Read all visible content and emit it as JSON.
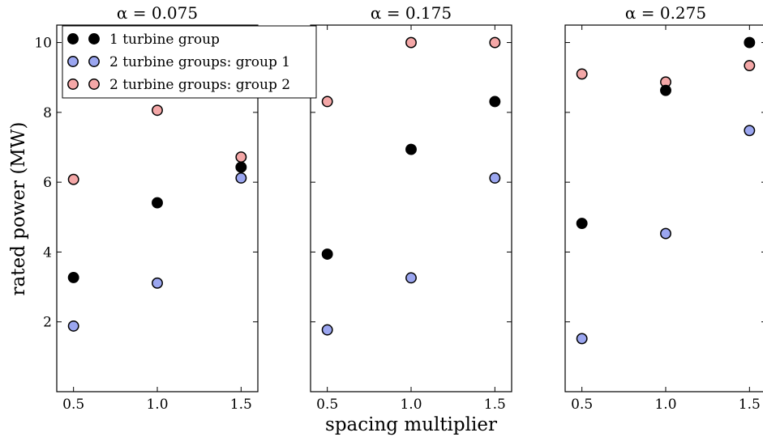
{
  "chart_data": {
    "type": "scatter",
    "ylabel": "rated power (MW)",
    "xlabel": "spacing multiplier",
    "ylim": [
      0,
      10.5
    ],
    "yticks": [
      2,
      4,
      6,
      8,
      10
    ],
    "ytick_labels": [
      "2",
      "4",
      "6",
      "8",
      "10"
    ],
    "xlim": [
      0.4,
      1.6
    ],
    "xticks": [
      0.5,
      1.0,
      1.5
    ],
    "xtick_labels": [
      "0.5",
      "1.0",
      "1.5"
    ],
    "grid": false,
    "legend_position": "top-left of first panel",
    "series_styles": [
      {
        "name": "1 turbine group",
        "color": "#000000"
      },
      {
        "name": "2 turbine groups: group 1",
        "color": "#9ba6f0"
      },
      {
        "name": "2 turbine groups: group 2",
        "color": "#f4a7a7"
      }
    ],
    "panels": [
      {
        "title": "α = 0.075",
        "x": [
          0.5,
          1.0,
          1.5
        ],
        "series": [
          {
            "name": "1 turbine group",
            "values": [
              3.27,
              5.41,
              6.43
            ]
          },
          {
            "name": "2 turbine groups: group 1",
            "values": [
              1.88,
              3.11,
              6.12
            ]
          },
          {
            "name": "2 turbine groups: group 2",
            "values": [
              6.08,
              8.06,
              6.72
            ]
          }
        ]
      },
      {
        "title": "α = 0.175",
        "x": [
          0.5,
          1.0,
          1.5
        ],
        "series": [
          {
            "name": "1 turbine group",
            "values": [
              3.94,
              6.94,
              8.31
            ]
          },
          {
            "name": "2 turbine groups: group 1",
            "values": [
              1.77,
              3.26,
              6.12
            ]
          },
          {
            "name": "2 turbine groups: group 2",
            "values": [
              8.31,
              10.0,
              10.0
            ]
          }
        ]
      },
      {
        "title": "α = 0.275",
        "x": [
          0.5,
          1.0,
          1.5
        ],
        "series": [
          {
            "name": "1 turbine group",
            "values": [
              4.82,
              8.63,
              10.0
            ]
          },
          {
            "name": "2 turbine groups: group 1",
            "values": [
              1.52,
              4.53,
              7.48
            ]
          },
          {
            "name": "2 turbine groups: group 2",
            "values": [
              9.1,
              8.87,
              9.34
            ]
          }
        ]
      }
    ]
  }
}
